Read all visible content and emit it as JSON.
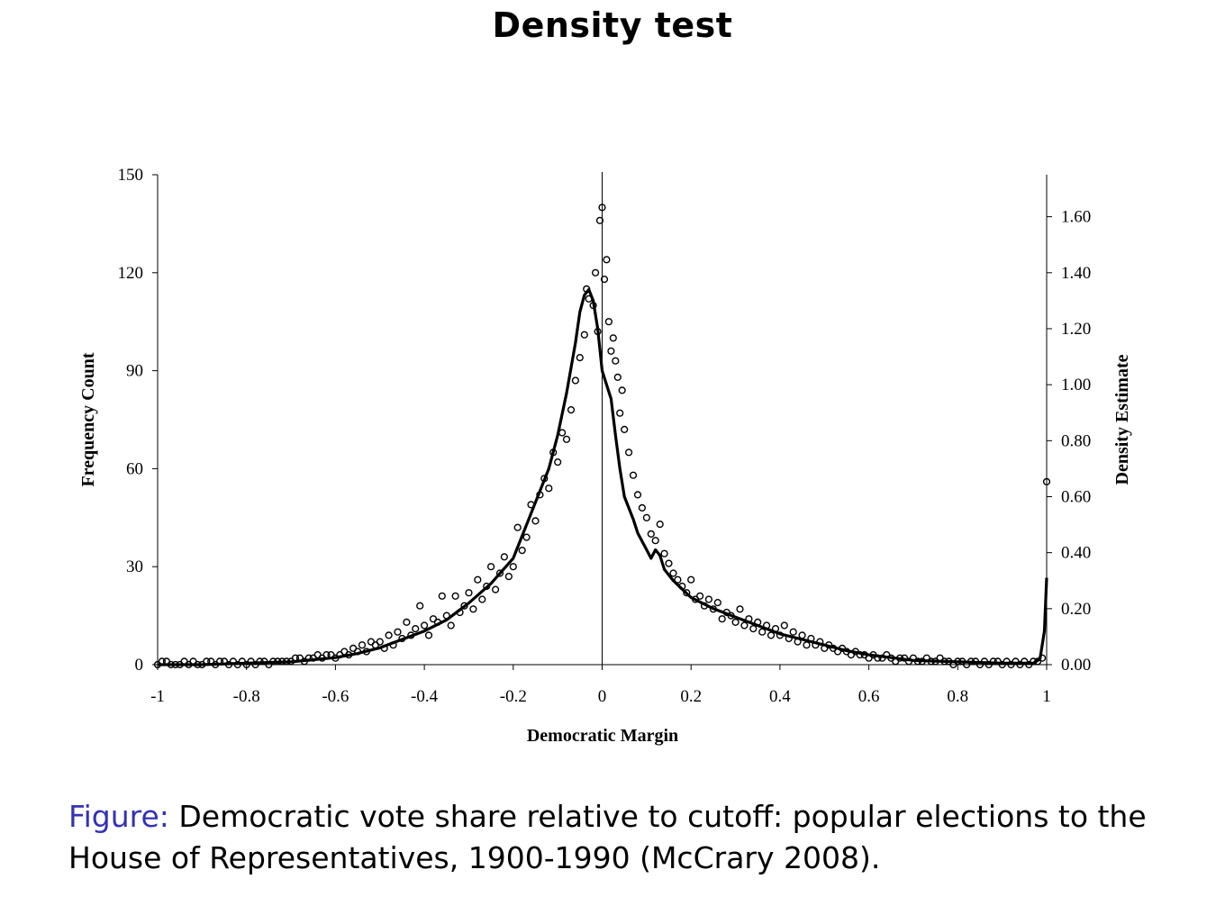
{
  "slide": {
    "title": "Density test"
  },
  "caption": {
    "prefix": "Figure:",
    "text": " Democratic vote share relative to cutoff: popular elections to the House of Representatives, 1900-1990 (McCrary 2008)."
  },
  "chart_data": {
    "type": "scatter",
    "title": "",
    "xlabel": "Democratic Margin",
    "ylabel": "Frequency Count",
    "y2label": "Density Estimate",
    "xlim": [
      -1,
      1
    ],
    "ylim": [
      0,
      150
    ],
    "y2lim": [
      0,
      1.75
    ],
    "x_ticks": [
      "-1",
      "-0.8",
      "-0.6",
      "-0.4",
      "-0.2",
      "0",
      "0.2",
      "0.4",
      "0.6",
      "0.8",
      "1"
    ],
    "x_tick_values": [
      -1,
      -0.8,
      -0.6,
      -0.4,
      -0.2,
      0,
      0.2,
      0.4,
      0.6,
      0.8,
      1
    ],
    "y_ticks": [
      "0",
      "30",
      "60",
      "90",
      "120",
      "150"
    ],
    "y_tick_values": [
      0,
      30,
      60,
      90,
      120,
      150
    ],
    "y2_ticks": [
      "0.00",
      "0.20",
      "0.40",
      "0.60",
      "0.80",
      "1.00",
      "1.20",
      "1.40",
      "1.60"
    ],
    "y2_tick_values": [
      0,
      0.2,
      0.4,
      0.6,
      0.8,
      1.0,
      1.2,
      1.4,
      1.6
    ],
    "cutoff_line_x": 0,
    "grid": false,
    "legend": "none",
    "series": [
      {
        "kind": "frequency-count-points",
        "axis": "left",
        "marker": "open-circle",
        "points": [
          [
            -1.0,
            0
          ],
          [
            -0.99,
            1
          ],
          [
            -0.98,
            1
          ],
          [
            -0.97,
            0
          ],
          [
            -0.96,
            0
          ],
          [
            -0.95,
            0
          ],
          [
            -0.94,
            1
          ],
          [
            -0.93,
            0
          ],
          [
            -0.92,
            1
          ],
          [
            -0.91,
            0
          ],
          [
            -0.9,
            0
          ],
          [
            -0.89,
            1
          ],
          [
            -0.88,
            1
          ],
          [
            -0.87,
            0
          ],
          [
            -0.86,
            1
          ],
          [
            -0.85,
            1
          ],
          [
            -0.84,
            0
          ],
          [
            -0.83,
            1
          ],
          [
            -0.82,
            0
          ],
          [
            -0.81,
            1
          ],
          [
            -0.8,
            0
          ],
          [
            -0.79,
            1
          ],
          [
            -0.78,
            0
          ],
          [
            -0.77,
            1
          ],
          [
            -0.76,
            1
          ],
          [
            -0.75,
            0
          ],
          [
            -0.74,
            1
          ],
          [
            -0.73,
            1
          ],
          [
            -0.72,
            1
          ],
          [
            -0.71,
            1
          ],
          [
            -0.7,
            1
          ],
          [
            -0.69,
            2
          ],
          [
            -0.68,
            2
          ],
          [
            -0.67,
            1
          ],
          [
            -0.66,
            2
          ],
          [
            -0.65,
            2
          ],
          [
            -0.64,
            3
          ],
          [
            -0.63,
            2
          ],
          [
            -0.62,
            3
          ],
          [
            -0.61,
            3
          ],
          [
            -0.6,
            2
          ],
          [
            -0.59,
            3
          ],
          [
            -0.58,
            4
          ],
          [
            -0.57,
            3
          ],
          [
            -0.56,
            5
          ],
          [
            -0.55,
            4
          ],
          [
            -0.54,
            6
          ],
          [
            -0.53,
            4
          ],
          [
            -0.52,
            7
          ],
          [
            -0.51,
            6
          ],
          [
            -0.5,
            7
          ],
          [
            -0.49,
            5
          ],
          [
            -0.48,
            9
          ],
          [
            -0.47,
            6
          ],
          [
            -0.46,
            10
          ],
          [
            -0.45,
            8
          ],
          [
            -0.44,
            13
          ],
          [
            -0.43,
            9
          ],
          [
            -0.42,
            11
          ],
          [
            -0.41,
            18
          ],
          [
            -0.4,
            12
          ],
          [
            -0.39,
            9
          ],
          [
            -0.38,
            14
          ],
          [
            -0.37,
            13
          ],
          [
            -0.36,
            21
          ],
          [
            -0.35,
            15
          ],
          [
            -0.34,
            12
          ],
          [
            -0.33,
            21
          ],
          [
            -0.32,
            16
          ],
          [
            -0.31,
            18
          ],
          [
            -0.3,
            22
          ],
          [
            -0.29,
            17
          ],
          [
            -0.28,
            26
          ],
          [
            -0.27,
            20
          ],
          [
            -0.26,
            24
          ],
          [
            -0.25,
            30
          ],
          [
            -0.24,
            23
          ],
          [
            -0.23,
            28
          ],
          [
            -0.22,
            33
          ],
          [
            -0.21,
            27
          ],
          [
            -0.2,
            30
          ],
          [
            -0.19,
            42
          ],
          [
            -0.18,
            35
          ],
          [
            -0.17,
            39
          ],
          [
            -0.16,
            49
          ],
          [
            -0.15,
            44
          ],
          [
            -0.14,
            52
          ],
          [
            -0.13,
            57
          ],
          [
            -0.12,
            54
          ],
          [
            -0.11,
            65
          ],
          [
            -0.1,
            62
          ],
          [
            -0.09,
            71
          ],
          [
            -0.08,
            69
          ],
          [
            -0.07,
            78
          ],
          [
            -0.06,
            87
          ],
          [
            -0.05,
            94
          ],
          [
            -0.04,
            101
          ],
          [
            -0.035,
            115
          ],
          [
            -0.03,
            112
          ],
          [
            -0.02,
            110
          ],
          [
            -0.015,
            120
          ],
          [
            -0.01,
            102
          ],
          [
            -0.005,
            136
          ],
          [
            0.0,
            140
          ],
          [
            0.005,
            118
          ],
          [
            0.01,
            124
          ],
          [
            0.015,
            105
          ],
          [
            0.02,
            96
          ],
          [
            0.025,
            100
          ],
          [
            0.03,
            93
          ],
          [
            0.035,
            88
          ],
          [
            0.04,
            77
          ],
          [
            0.045,
            84
          ],
          [
            0.05,
            72
          ],
          [
            0.06,
            65
          ],
          [
            0.07,
            58
          ],
          [
            0.08,
            52
          ],
          [
            0.09,
            48
          ],
          [
            0.1,
            45
          ],
          [
            0.11,
            40
          ],
          [
            0.12,
            38
          ],
          [
            0.13,
            43
          ],
          [
            0.14,
            34
          ],
          [
            0.15,
            31
          ],
          [
            0.16,
            28
          ],
          [
            0.17,
            26
          ],
          [
            0.18,
            24
          ],
          [
            0.19,
            22
          ],
          [
            0.2,
            26
          ],
          [
            0.21,
            20
          ],
          [
            0.22,
            21
          ],
          [
            0.23,
            18
          ],
          [
            0.24,
            20
          ],
          [
            0.25,
            17
          ],
          [
            0.26,
            19
          ],
          [
            0.27,
            14
          ],
          [
            0.28,
            16
          ],
          [
            0.29,
            15
          ],
          [
            0.3,
            13
          ],
          [
            0.31,
            17
          ],
          [
            0.32,
            12
          ],
          [
            0.33,
            14
          ],
          [
            0.34,
            11
          ],
          [
            0.35,
            13
          ],
          [
            0.36,
            10
          ],
          [
            0.37,
            12
          ],
          [
            0.38,
            9
          ],
          [
            0.39,
            11
          ],
          [
            0.4,
            9
          ],
          [
            0.41,
            12
          ],
          [
            0.42,
            8
          ],
          [
            0.43,
            10
          ],
          [
            0.44,
            7
          ],
          [
            0.45,
            9
          ],
          [
            0.46,
            6
          ],
          [
            0.47,
            8
          ],
          [
            0.48,
            6
          ],
          [
            0.49,
            7
          ],
          [
            0.5,
            5
          ],
          [
            0.51,
            6
          ],
          [
            0.52,
            5
          ],
          [
            0.53,
            4
          ],
          [
            0.54,
            5
          ],
          [
            0.55,
            4
          ],
          [
            0.56,
            3
          ],
          [
            0.57,
            4
          ],
          [
            0.58,
            3
          ],
          [
            0.59,
            3
          ],
          [
            0.6,
            2
          ],
          [
            0.61,
            3
          ],
          [
            0.62,
            2
          ],
          [
            0.63,
            2
          ],
          [
            0.64,
            3
          ],
          [
            0.65,
            2
          ],
          [
            0.66,
            1
          ],
          [
            0.67,
            2
          ],
          [
            0.68,
            2
          ],
          [
            0.69,
            1
          ],
          [
            0.7,
            2
          ],
          [
            0.71,
            1
          ],
          [
            0.72,
            1
          ],
          [
            0.73,
            2
          ],
          [
            0.74,
            1
          ],
          [
            0.75,
            1
          ],
          [
            0.76,
            2
          ],
          [
            0.77,
            1
          ],
          [
            0.78,
            1
          ],
          [
            0.79,
            0
          ],
          [
            0.8,
            1
          ],
          [
            0.81,
            1
          ],
          [
            0.82,
            0
          ],
          [
            0.83,
            1
          ],
          [
            0.84,
            1
          ],
          [
            0.85,
            0
          ],
          [
            0.86,
            1
          ],
          [
            0.87,
            0
          ],
          [
            0.88,
            1
          ],
          [
            0.89,
            1
          ],
          [
            0.9,
            0
          ],
          [
            0.91,
            1
          ],
          [
            0.92,
            0
          ],
          [
            0.93,
            1
          ],
          [
            0.94,
            0
          ],
          [
            0.95,
            1
          ],
          [
            0.96,
            0
          ],
          [
            0.97,
            1
          ],
          [
            0.98,
            1
          ],
          [
            0.99,
            2
          ],
          [
            1.0,
            56
          ]
        ]
      },
      {
        "kind": "density-estimate-line",
        "axis": "right",
        "style": "solid-thick",
        "points": [
          [
            -1.0,
            0.0
          ],
          [
            -0.9,
            0.0
          ],
          [
            -0.8,
            0.005
          ],
          [
            -0.7,
            0.01
          ],
          [
            -0.6,
            0.025
          ],
          [
            -0.55,
            0.04
          ],
          [
            -0.5,
            0.06
          ],
          [
            -0.45,
            0.09
          ],
          [
            -0.4,
            0.12
          ],
          [
            -0.35,
            0.16
          ],
          [
            -0.3,
            0.22
          ],
          [
            -0.25,
            0.29
          ],
          [
            -0.2,
            0.38
          ],
          [
            -0.18,
            0.46
          ],
          [
            -0.15,
            0.58
          ],
          [
            -0.12,
            0.7
          ],
          [
            -0.1,
            0.82
          ],
          [
            -0.08,
            0.97
          ],
          [
            -0.06,
            1.15
          ],
          [
            -0.05,
            1.26
          ],
          [
            -0.04,
            1.32
          ],
          [
            -0.03,
            1.34
          ],
          [
            -0.02,
            1.3
          ],
          [
            -0.01,
            1.2
          ],
          [
            0.0,
            1.05
          ],
          [
            0.01,
            1.0
          ],
          [
            0.02,
            0.95
          ],
          [
            0.03,
            0.82
          ],
          [
            0.04,
            0.7
          ],
          [
            0.05,
            0.6
          ],
          [
            0.07,
            0.52
          ],
          [
            0.08,
            0.47
          ],
          [
            0.1,
            0.41
          ],
          [
            0.11,
            0.38
          ],
          [
            0.12,
            0.41
          ],
          [
            0.13,
            0.39
          ],
          [
            0.14,
            0.34
          ],
          [
            0.16,
            0.3
          ],
          [
            0.18,
            0.27
          ],
          [
            0.2,
            0.24
          ],
          [
            0.25,
            0.2
          ],
          [
            0.3,
            0.17
          ],
          [
            0.35,
            0.14
          ],
          [
            0.4,
            0.11
          ],
          [
            0.45,
            0.09
          ],
          [
            0.5,
            0.07
          ],
          [
            0.55,
            0.05
          ],
          [
            0.6,
            0.035
          ],
          [
            0.65,
            0.025
          ],
          [
            0.7,
            0.015
          ],
          [
            0.8,
            0.01
          ],
          [
            0.9,
            0.005
          ],
          [
            0.97,
            0.005
          ],
          [
            0.985,
            0.02
          ],
          [
            0.995,
            0.12
          ],
          [
            1.0,
            0.31
          ]
        ]
      }
    ]
  }
}
